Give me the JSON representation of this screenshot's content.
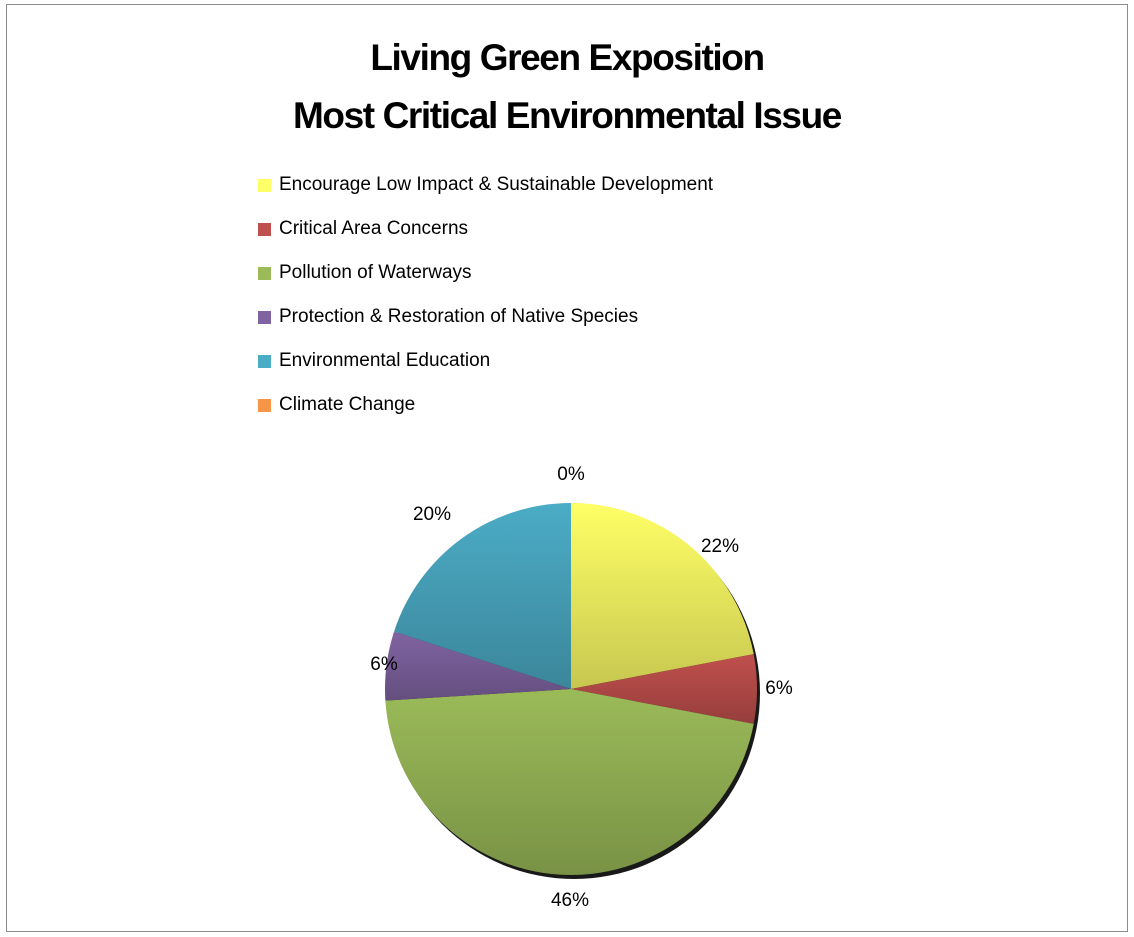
{
  "chart_data": {
    "type": "pie",
    "title": "Living Green Exposition",
    "subtitle": "Most Critical Environmental Issue",
    "legend_position": "top",
    "categories": [
      "Encourage Low Impact & Sustainable Development",
      "Critical Area Concerns",
      "Pollution of Waterways",
      "Protection & Restoration of Native Species",
      "Environmental Education",
      "Climate Change"
    ],
    "values": [
      22,
      6,
      46,
      6,
      20,
      0
    ],
    "data_labels": [
      "22%",
      "6%",
      "46%",
      "6%",
      "20%",
      "0%"
    ],
    "colors": [
      "#ffff66",
      "#c0504d",
      "#9bbb59",
      "#8064a2",
      "#4bacc6",
      "#f79646"
    ]
  }
}
